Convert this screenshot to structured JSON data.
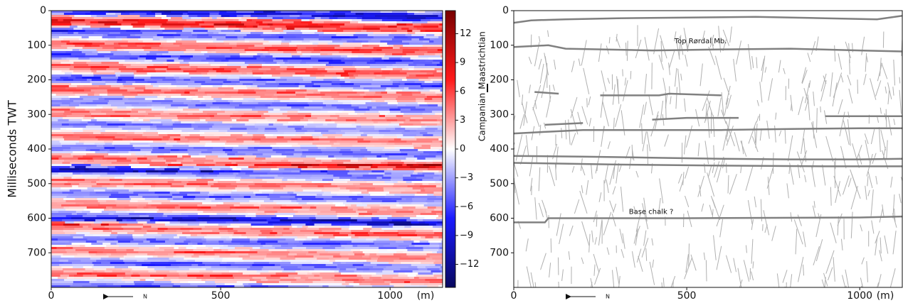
{
  "chart_data": [
    {
      "type": "heatmap",
      "y_label": "Milliseconds TWT",
      "x_label": "(m)",
      "north_label": "N",
      "xlim": [
        0,
        1155
      ],
      "xticks": [
        0,
        500,
        1000
      ],
      "ylim": [
        0,
        800
      ],
      "y_inverted": true,
      "yticks": [
        0,
        100,
        200,
        300,
        400,
        500,
        600,
        700
      ],
      "colorbar": {
        "lim": [
          -14.4,
          14.4
        ],
        "ticks": [
          12,
          9,
          6,
          3,
          0,
          {
            "value": -3,
            "label": "−3"
          },
          {
            "value": -6,
            "label": "−6"
          },
          {
            "value": -9,
            "label": "−9"
          },
          {
            "value": -12,
            "label": "−12"
          }
        ],
        "colors": [
          "#08085e",
          "#1a1aff",
          "#ffffff",
          "#ff1a1a",
          "#780000"
        ]
      },
      "side_labels": [
        "Campanian",
        "Maastrichtian"
      ]
    },
    {
      "type": "line",
      "x_label": "(m)",
      "north_label": "N",
      "xlim": [
        0,
        1123
      ],
      "xticks": [
        0,
        500,
        1000
      ],
      "ylim": [
        0,
        800
      ],
      "y_inverted": true,
      "yticks": [
        0,
        100,
        200,
        300,
        400,
        500,
        600,
        700
      ],
      "color": "#808080",
      "series": [
        {
          "x": [
            0,
            50,
            150,
            300,
            500,
            700,
            900,
            1050,
            1123
          ],
          "values": [
            35,
            28,
            25,
            22,
            20,
            18,
            22,
            25,
            15
          ]
        },
        {
          "x": [
            0,
            100,
            150,
            400,
            600,
            800,
            1000,
            1123
          ],
          "values": [
            105,
            100,
            110,
            115,
            112,
            110,
            115,
            118
          ]
        },
        {
          "x": [
            60,
            130,
            140,
            250,
            280,
            420,
            450,
            600,
            650,
            850,
            900,
            1123
          ],
          "values": [
            235,
            240,
            null,
            245,
            245,
            245,
            240,
            245,
            null,
            250,
            null,
            250
          ]
        },
        {
          "x": [
            90,
            200,
            230,
            400,
            500,
            650,
            700,
            900,
            1000,
            1123
          ],
          "values": [
            330,
            325,
            null,
            315,
            310,
            310,
            null,
            305,
            305,
            305
          ]
        },
        {
          "x": [
            0,
            100,
            200,
            400,
            600,
            800,
            1000,
            1123
          ],
          "values": [
            355,
            350,
            345,
            345,
            345,
            342,
            340,
            340
          ]
        },
        {
          "x": [
            0,
            200,
            400,
            600,
            800,
            1000,
            1123
          ],
          "values": [
            420,
            422,
            425,
            428,
            430,
            430,
            428
          ]
        },
        {
          "x": [
            0,
            300,
            600,
            900,
            1123
          ],
          "values": [
            440,
            445,
            448,
            450,
            450
          ]
        },
        {
          "x": [
            0,
            90,
            100,
            500,
            1000,
            1123
          ],
          "values": [
            612,
            612,
            600,
            600,
            598,
            595
          ]
        }
      ],
      "annotations": [
        {
          "text": "Top Rørdal Mb.",
          "x": 540,
          "y": 88
        },
        {
          "text": "Base chalk ?",
          "x": 397,
          "y": 582
        }
      ]
    }
  ]
}
